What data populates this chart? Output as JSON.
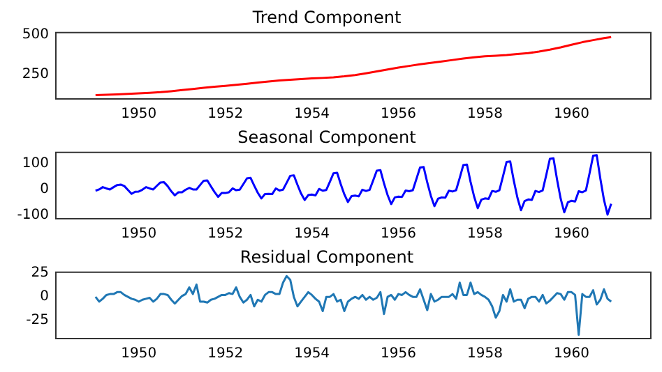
{
  "chart_data": [
    {
      "type": "line",
      "title": "Trend Component",
      "color": "#ff0000",
      "xlim": [
        "1948-02",
        "1961-11"
      ],
      "xticks": [
        "1950",
        "1952",
        "1954",
        "1956",
        "1958",
        "1960"
      ],
      "ylim": [
        98,
        512
      ],
      "yticks": [
        250,
        500
      ],
      "x": [
        "1949-01",
        "1949-04",
        "1949-07",
        "1949-10",
        "1950-01",
        "1950-04",
        "1950-07",
        "1950-10",
        "1951-01",
        "1951-04",
        "1951-07",
        "1951-10",
        "1952-01",
        "1952-04",
        "1952-07",
        "1952-10",
        "1953-01",
        "1953-04",
        "1953-07",
        "1953-10",
        "1954-01",
        "1954-04",
        "1954-07",
        "1954-10",
        "1955-01",
        "1955-04",
        "1955-07",
        "1955-10",
        "1956-01",
        "1956-04",
        "1956-07",
        "1956-10",
        "1957-01",
        "1957-04",
        "1957-07",
        "1957-10",
        "1958-01",
        "1958-04",
        "1958-07",
        "1958-10",
        "1959-01",
        "1959-04",
        "1959-07",
        "1959-10",
        "1960-01",
        "1960-04",
        "1960-07",
        "1960-10",
        "1960-12"
      ],
      "values": [
        122,
        124,
        126,
        129,
        133,
        136,
        140,
        146,
        153,
        160,
        168,
        174,
        180,
        186,
        193,
        200,
        207,
        213,
        218,
        222,
        226,
        229,
        233,
        239,
        247,
        258,
        270,
        282,
        294,
        304,
        314,
        323,
        332,
        341,
        350,
        358,
        364,
        368,
        372,
        378,
        384,
        394,
        406,
        420,
        436,
        452,
        465,
        477,
        484
      ]
    },
    {
      "type": "line",
      "title": "Seasonal Component",
      "color": "#0000ff",
      "xlim": [
        "1948-02",
        "1961-11"
      ],
      "xticks": [
        "1950",
        "1952",
        "1954",
        "1956",
        "1958",
        "1960"
      ],
      "ylim": [
        -115,
        143
      ],
      "yticks": [
        -100,
        0,
        100
      ],
      "x": [
        "1949-01",
        "1949-02",
        "1949-03",
        "1949-04",
        "1949-05",
        "1949-06",
        "1949-07",
        "1949-08",
        "1949-09",
        "1949-10",
        "1949-11",
        "1949-12",
        "1950-01",
        "1950-02",
        "1950-03",
        "1950-04",
        "1950-05",
        "1950-06",
        "1950-07",
        "1950-08",
        "1950-09",
        "1950-10",
        "1950-11",
        "1950-12",
        "1951-01",
        "1951-02",
        "1951-03",
        "1951-04",
        "1951-05",
        "1951-06",
        "1951-07",
        "1951-08",
        "1951-09",
        "1951-10",
        "1951-11",
        "1951-12",
        "1952-01",
        "1952-02",
        "1952-03",
        "1952-04",
        "1952-05",
        "1952-06",
        "1952-07",
        "1952-08",
        "1952-09",
        "1952-10",
        "1952-11",
        "1952-12",
        "1953-01",
        "1953-02",
        "1953-03",
        "1953-04",
        "1953-05",
        "1953-06",
        "1953-07",
        "1953-08",
        "1953-09",
        "1953-10",
        "1953-11",
        "1953-12",
        "1954-01",
        "1954-02",
        "1954-03",
        "1954-04",
        "1954-05",
        "1954-06",
        "1954-07",
        "1954-08",
        "1954-09",
        "1954-10",
        "1954-11",
        "1954-12",
        "1955-01",
        "1955-02",
        "1955-03",
        "1955-04",
        "1955-05",
        "1955-06",
        "1955-07",
        "1955-08",
        "1955-09",
        "1955-10",
        "1955-11",
        "1955-12",
        "1956-01",
        "1956-02",
        "1956-03",
        "1956-04",
        "1956-05",
        "1956-06",
        "1956-07",
        "1956-08",
        "1956-09",
        "1956-10",
        "1956-11",
        "1956-12",
        "1957-01",
        "1957-02",
        "1957-03",
        "1957-04",
        "1957-05",
        "1957-06",
        "1957-07",
        "1957-08",
        "1957-09",
        "1957-10",
        "1957-11",
        "1957-12",
        "1958-01",
        "1958-02",
        "1958-03",
        "1958-04",
        "1958-05",
        "1958-06",
        "1958-07",
        "1958-08",
        "1958-09",
        "1958-10",
        "1958-11",
        "1958-12",
        "1959-01",
        "1959-02",
        "1959-03",
        "1959-04",
        "1959-05",
        "1959-06",
        "1959-07",
        "1959-08",
        "1959-09",
        "1959-10",
        "1959-11",
        "1959-12",
        "1960-01",
        "1960-02",
        "1960-03",
        "1960-04",
        "1960-05",
        "1960-06",
        "1960-07",
        "1960-08",
        "1960-09",
        "1960-10",
        "1960-11",
        "1960-12"
      ],
      "values": [
        -6,
        -1,
        8,
        3,
        -1,
        8,
        16,
        18,
        12,
        -3,
        -18,
        -10,
        -9,
        -2,
        8,
        3,
        -1,
        13,
        26,
        27,
        12,
        -8,
        -24,
        -12,
        -12,
        -2,
        5,
        -1,
        -1,
        16,
        33,
        34,
        11,
        -11,
        -30,
        -15,
        -15,
        -12,
        3,
        -4,
        -2,
        20,
        42,
        44,
        14,
        -14,
        -36,
        -19,
        -18,
        -19,
        3,
        -5,
        -2,
        25,
        52,
        54,
        17,
        -17,
        -42,
        -23,
        -21,
        -24,
        1,
        -6,
        -3,
        29,
        62,
        64,
        20,
        -20,
        -50,
        -27,
        -25,
        -28,
        -2,
        -7,
        -3,
        34,
        72,
        74,
        23,
        -23,
        -58,
        -32,
        -29,
        -30,
        -5,
        -8,
        -4,
        40,
        84,
        86,
        26,
        -26,
        -66,
        -37,
        -32,
        -33,
        -6,
        -9,
        -4,
        44,
        94,
        96,
        29,
        -29,
        -74,
        -41,
        -36,
        -38,
        -7,
        -10,
        -4,
        50,
        106,
        108,
        33,
        -33,
        -82,
        -46,
        -40,
        -42,
        -7,
        -11,
        -5,
        55,
        118,
        120,
        37,
        -37,
        -90,
        -51,
        -45,
        -48,
        -8,
        -12,
        -5,
        61,
        130,
        132,
        41,
        -41,
        -99,
        -57
      ]
    },
    {
      "type": "line",
      "title": "Residual Component",
      "color": "#1f77b4",
      "xlim": [
        "1948-02",
        "1961-11"
      ],
      "xticks": [
        "1950",
        "1952",
        "1954",
        "1956",
        "1958",
        "1960"
      ],
      "ylim": [
        -44,
        26
      ],
      "yticks": [
        -25,
        0,
        25
      ],
      "x": [
        "1949-01",
        "1949-02",
        "1949-03",
        "1949-04",
        "1949-05",
        "1949-06",
        "1949-07",
        "1949-08",
        "1949-09",
        "1949-10",
        "1949-11",
        "1949-12",
        "1950-01",
        "1950-02",
        "1950-03",
        "1950-04",
        "1950-05",
        "1950-06",
        "1950-07",
        "1950-08",
        "1950-09",
        "1950-10",
        "1950-11",
        "1950-12",
        "1951-01",
        "1951-02",
        "1951-03",
        "1951-04",
        "1951-05",
        "1951-06",
        "1951-07",
        "1951-08",
        "1951-09",
        "1951-10",
        "1951-11",
        "1951-12",
        "1952-01",
        "1952-02",
        "1952-03",
        "1952-04",
        "1952-05",
        "1952-06",
        "1952-07",
        "1952-08",
        "1952-09",
        "1952-10",
        "1952-11",
        "1952-12",
        "1953-01",
        "1953-02",
        "1953-03",
        "1953-04",
        "1953-05",
        "1953-06",
        "1953-07",
        "1953-08",
        "1953-09",
        "1953-10",
        "1953-11",
        "1953-12",
        "1954-01",
        "1954-02",
        "1954-03",
        "1954-04",
        "1954-05",
        "1954-06",
        "1954-07",
        "1954-08",
        "1954-09",
        "1954-10",
        "1954-11",
        "1954-12",
        "1955-01",
        "1955-02",
        "1955-03",
        "1955-04",
        "1955-05",
        "1955-06",
        "1955-07",
        "1955-08",
        "1955-09",
        "1955-10",
        "1955-11",
        "1955-12",
        "1956-01",
        "1956-02",
        "1956-03",
        "1956-04",
        "1956-05",
        "1956-06",
        "1956-07",
        "1956-08",
        "1956-09",
        "1956-10",
        "1956-11",
        "1956-12",
        "1957-01",
        "1957-02",
        "1957-03",
        "1957-04",
        "1957-05",
        "1957-06",
        "1957-07",
        "1957-08",
        "1957-09",
        "1957-10",
        "1957-11",
        "1957-12",
        "1958-01",
        "1958-02",
        "1958-03",
        "1958-04",
        "1958-05",
        "1958-06",
        "1958-07",
        "1958-08",
        "1958-09",
        "1958-10",
        "1958-11",
        "1958-12",
        "1959-01",
        "1959-02",
        "1959-03",
        "1959-04",
        "1959-05",
        "1959-06",
        "1959-07",
        "1959-08",
        "1959-09",
        "1959-10",
        "1959-11",
        "1959-12",
        "1960-01",
        "1960-02",
        "1960-03",
        "1960-04",
        "1960-05",
        "1960-06",
        "1960-07",
        "1960-08",
        "1960-09",
        "1960-10",
        "1960-11",
        "1960-12"
      ],
      "values": [
        0,
        -5,
        -2,
        2,
        3,
        3,
        5,
        5,
        2,
        0,
        -2,
        -3,
        -5,
        -3,
        -2,
        -1,
        -5,
        -2,
        3,
        3,
        2,
        -3,
        -7,
        -3,
        1,
        3,
        10,
        3,
        13,
        -5,
        -5,
        -6,
        -3,
        -2,
        0,
        2,
        2,
        4,
        3,
        10,
        0,
        -6,
        -3,
        2,
        -10,
        -3,
        -5,
        2,
        5,
        5,
        3,
        3,
        15,
        22,
        18,
        0,
        -10,
        -5,
        0,
        5,
        2,
        -2,
        -5,
        -15,
        0,
        0,
        3,
        -5,
        -3,
        -15,
        -5,
        -2,
        0,
        -2,
        2,
        -3,
        0,
        -3,
        -1,
        5,
        -18,
        0,
        2,
        -3,
        3,
        2,
        5,
        2,
        0,
        0,
        8,
        -3,
        -14,
        3,
        -5,
        -3,
        0,
        0,
        0,
        3,
        -2,
        15,
        2,
        2,
        15,
        3,
        5,
        2,
        0,
        -3,
        -10,
        -22,
        -15,
        2,
        -5,
        8,
        -5,
        -3,
        -3,
        -12,
        -2,
        0,
        0,
        -5,
        2,
        -7,
        -4,
        0,
        4,
        3,
        -3,
        5,
        5,
        2,
        -40,
        3,
        0,
        0,
        7,
        -8,
        -3,
        8,
        -2,
        -5
      ]
    }
  ]
}
